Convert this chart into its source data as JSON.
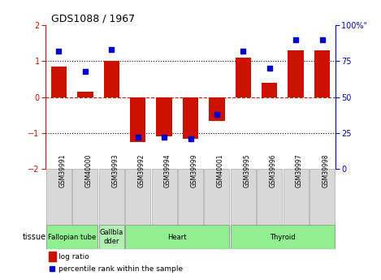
{
  "title": "GDS1088 / 1967",
  "samples": [
    "GSM39991",
    "GSM40000",
    "GSM39993",
    "GSM39992",
    "GSM39994",
    "GSM39999",
    "GSM40001",
    "GSM39995",
    "GSM39996",
    "GSM39997",
    "GSM39998"
  ],
  "log_ratio": [
    0.85,
    0.15,
    1.0,
    -1.25,
    -1.1,
    -1.15,
    -0.65,
    1.1,
    0.4,
    1.3,
    1.3
  ],
  "percentile": [
    82,
    68,
    83,
    22,
    22,
    21,
    38,
    82,
    70,
    90,
    90
  ],
  "tissues": [
    {
      "label": "Fallopian tube",
      "start": 0,
      "end": 2,
      "color": "#90ee90"
    },
    {
      "label": "Gallbla\ndder",
      "start": 2,
      "end": 3,
      "color": "#b0f0b0"
    },
    {
      "label": "Heart",
      "start": 3,
      "end": 7,
      "color": "#90ee90"
    },
    {
      "label": "Thyroid",
      "start": 7,
      "end": 11,
      "color": "#90ee90"
    }
  ],
  "bar_color": "#cc1100",
  "dot_color": "#0000cc",
  "ylim_left": [
    -2,
    2
  ],
  "ylim_right": [
    0,
    100
  ],
  "yticks_left": [
    -2,
    -1,
    0,
    1,
    2
  ],
  "yticks_right": [
    0,
    25,
    50,
    75,
    100
  ],
  "legend_items": [
    "log ratio",
    "percentile rank within the sample"
  ],
  "tissue_label": "tissue",
  "bg_color": "#ffffff",
  "sample_box_color": "#d8d8d8",
  "sample_box_edge": "#aaaaaa"
}
